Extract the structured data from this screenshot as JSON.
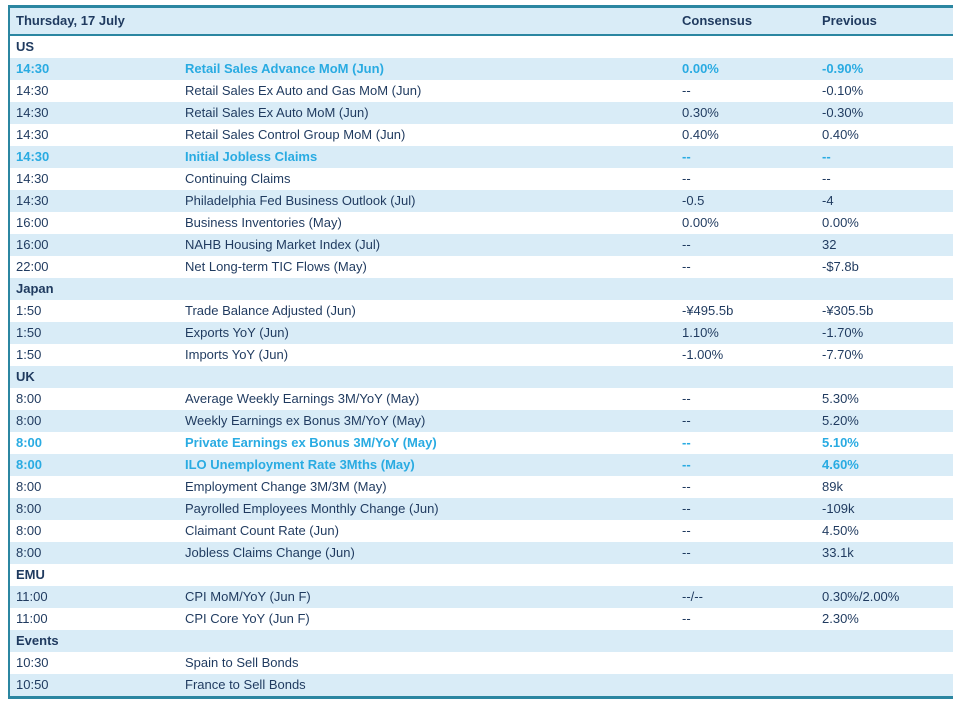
{
  "colors": {
    "accent": "#29abe2",
    "navy": "#1f3a5f",
    "rowalt": "#d9ecf7",
    "border": "#2b86a1"
  },
  "header": {
    "title": "Thursday, 17 July",
    "consensus_label": "Consensus",
    "previous_label": "Previous"
  },
  "rows": [
    {
      "type": "section",
      "label": "US"
    },
    {
      "type": "event",
      "time": "14:30",
      "event": "Retail Sales Advance MoM (Jun)",
      "consensus": "0.00%",
      "previous": "-0.90%",
      "highlight": true
    },
    {
      "type": "event",
      "time": "14:30",
      "event": "Retail Sales Ex Auto and Gas MoM (Jun)",
      "consensus": "--",
      "previous": "-0.10%"
    },
    {
      "type": "event",
      "time": "14:30",
      "event": "Retail Sales Ex Auto MoM (Jun)",
      "consensus": "0.30%",
      "previous": "-0.30%"
    },
    {
      "type": "event",
      "time": "14:30",
      "event": "Retail Sales Control Group MoM (Jun)",
      "consensus": "0.40%",
      "previous": "0.40%"
    },
    {
      "type": "event",
      "time": "14:30",
      "event": "Initial Jobless Claims",
      "consensus": "--",
      "previous": "--",
      "highlight": true
    },
    {
      "type": "event",
      "time": "14:30",
      "event": "Continuing Claims",
      "consensus": "--",
      "previous": "--"
    },
    {
      "type": "event",
      "time": "14:30",
      "event": "Philadelphia Fed Business Outlook (Jul)",
      "consensus": "-0.5",
      "previous": "-4"
    },
    {
      "type": "event",
      "time": "16:00",
      "event": "Business Inventories (May)",
      "consensus": "0.00%",
      "previous": "0.00%"
    },
    {
      "type": "event",
      "time": "16:00",
      "event": "NAHB Housing Market Index (Jul)",
      "consensus": "--",
      "previous": "32"
    },
    {
      "type": "event",
      "time": "22:00",
      "event": "Net Long-term TIC Flows (May)",
      "consensus": "--",
      "previous": "-$7.8b"
    },
    {
      "type": "section",
      "label": "Japan"
    },
    {
      "type": "event",
      "time": "1:50",
      "event": "Trade Balance Adjusted (Jun)",
      "consensus": "-¥495.5b",
      "previous": "-¥305.5b"
    },
    {
      "type": "event",
      "time": "1:50",
      "event": "Exports YoY (Jun)",
      "consensus": "1.10%",
      "previous": "-1.70%"
    },
    {
      "type": "event",
      "time": "1:50",
      "event": "Imports YoY (Jun)",
      "consensus": "-1.00%",
      "previous": "-7.70%"
    },
    {
      "type": "section",
      "label": "UK"
    },
    {
      "type": "event",
      "time": "8:00",
      "event": "Average Weekly Earnings 3M/YoY (May)",
      "consensus": "--",
      "previous": "5.30%"
    },
    {
      "type": "event",
      "time": "8:00",
      "event": "Weekly Earnings ex Bonus 3M/YoY (May)",
      "consensus": "--",
      "previous": "5.20%"
    },
    {
      "type": "event",
      "time": "8:00",
      "event": "Private Earnings ex Bonus 3M/YoY (May)",
      "consensus": "--",
      "previous": "5.10%",
      "highlight": true
    },
    {
      "type": "event",
      "time": "8:00",
      "event": "ILO Unemployment Rate 3Mths (May)",
      "consensus": "--",
      "previous": "4.60%",
      "highlight": true
    },
    {
      "type": "event",
      "time": "8:00",
      "event": "Employment Change 3M/3M (May)",
      "consensus": "--",
      "previous": "89k"
    },
    {
      "type": "event",
      "time": "8:00",
      "event": "Payrolled Employees Monthly Change (Jun)",
      "consensus": "--",
      "previous": "-109k"
    },
    {
      "type": "event",
      "time": "8:00",
      "event": "Claimant Count Rate (Jun)",
      "consensus": "--",
      "previous": "4.50%"
    },
    {
      "type": "event",
      "time": "8:00",
      "event": "Jobless Claims Change (Jun)",
      "consensus": "--",
      "previous": "33.1k"
    },
    {
      "type": "section",
      "label": "EMU"
    },
    {
      "type": "event",
      "time": "11:00",
      "event": "CPI MoM/YoY (Jun F)",
      "consensus": "--/--",
      "previous": "0.30%/2.00%"
    },
    {
      "type": "event",
      "time": "11:00",
      "event": "CPI Core YoY (Jun F)",
      "consensus": "--",
      "previous": "2.30%"
    },
    {
      "type": "section",
      "label": "Events"
    },
    {
      "type": "event",
      "time": "10:30",
      "event": "Spain to Sell Bonds",
      "consensus": "",
      "previous": ""
    },
    {
      "type": "event",
      "time": "10:50",
      "event": "France to Sell Bonds",
      "consensus": "",
      "previous": ""
    }
  ]
}
